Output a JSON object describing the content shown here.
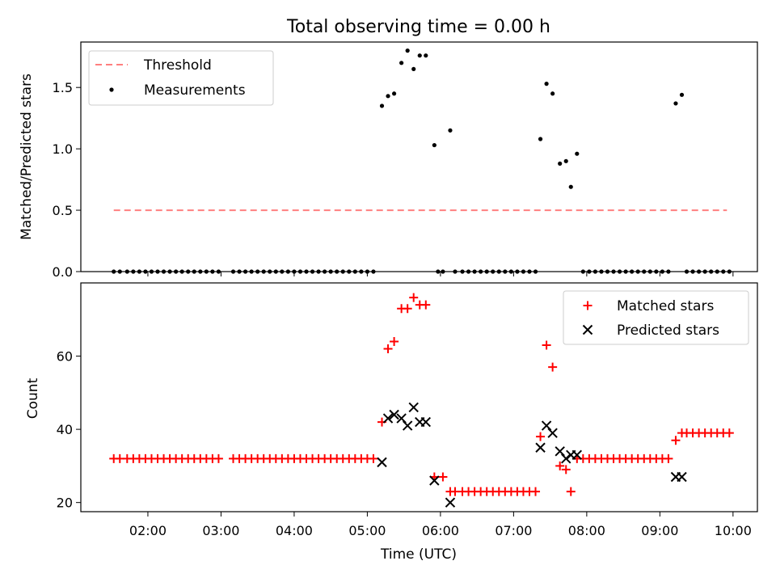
{
  "chart_data": [
    {
      "type": "line+scatter",
      "title": "Total observing time = 0.00 h",
      "xlabel": "",
      "ylabel": "Matched/Predicted stars",
      "ylim": [
        0,
        1.87
      ],
      "yticks": [
        "0.0",
        "0.5",
        "1.0",
        "1.5"
      ],
      "yticks_values": [
        0,
        0.5,
        1.0,
        1.5
      ],
      "legend": {
        "position": "upper-left",
        "entries": [
          "Threshold",
          "Measurements"
        ]
      },
      "threshold": {
        "name": "Threshold",
        "value": 0.5,
        "x_start": "01:32",
        "x_end": "09:55",
        "color": "#ff7f7f",
        "style": "dashed"
      },
      "series": [
        {
          "name": "Measurements",
          "color": "#000000",
          "points": [
            [
              "01:32",
              0
            ],
            [
              "01:37",
              0
            ],
            [
              "01:43",
              0
            ],
            [
              "01:48",
              0
            ],
            [
              "01:53",
              0
            ],
            [
              "01:58",
              0
            ],
            [
              "02:03",
              0
            ],
            [
              "02:08",
              0
            ],
            [
              "02:13",
              0
            ],
            [
              "02:18",
              0
            ],
            [
              "02:23",
              0
            ],
            [
              "02:28",
              0
            ],
            [
              "02:33",
              0
            ],
            [
              "02:38",
              0
            ],
            [
              "02:43",
              0
            ],
            [
              "02:48",
              0
            ],
            [
              "02:53",
              0
            ],
            [
              "02:58",
              0
            ],
            [
              "03:10",
              0
            ],
            [
              "03:15",
              0
            ],
            [
              "03:20",
              0
            ],
            [
              "03:25",
              0
            ],
            [
              "03:30",
              0
            ],
            [
              "03:35",
              0
            ],
            [
              "03:40",
              0
            ],
            [
              "03:45",
              0
            ],
            [
              "03:50",
              0
            ],
            [
              "03:55",
              0
            ],
            [
              "04:00",
              0
            ],
            [
              "04:05",
              0
            ],
            [
              "04:10",
              0
            ],
            [
              "04:15",
              0
            ],
            [
              "04:20",
              0
            ],
            [
              "04:25",
              0
            ],
            [
              "04:30",
              0
            ],
            [
              "04:35",
              0
            ],
            [
              "04:40",
              0
            ],
            [
              "04:45",
              0
            ],
            [
              "04:50",
              0
            ],
            [
              "04:55",
              0
            ],
            [
              "05:00",
              0
            ],
            [
              "05:05",
              0
            ],
            [
              "05:12",
              1.35
            ],
            [
              "05:17",
              1.43
            ],
            [
              "05:22",
              1.45
            ],
            [
              "05:28",
              1.7
            ],
            [
              "05:33",
              1.8
            ],
            [
              "05:38",
              1.65
            ],
            [
              "05:43",
              1.76
            ],
            [
              "05:48",
              1.76
            ],
            [
              "05:55",
              1.03
            ],
            [
              "06:08",
              1.15
            ],
            [
              "05:58",
              0
            ],
            [
              "06:02",
              0
            ],
            [
              "06:12",
              0
            ],
            [
              "06:18",
              0
            ],
            [
              "06:23",
              0
            ],
            [
              "06:28",
              0
            ],
            [
              "06:33",
              0
            ],
            [
              "06:38",
              0
            ],
            [
              "06:43",
              0
            ],
            [
              "06:48",
              0
            ],
            [
              "06:53",
              0
            ],
            [
              "06:58",
              0
            ],
            [
              "07:03",
              0
            ],
            [
              "07:08",
              0
            ],
            [
              "07:13",
              0
            ],
            [
              "07:18",
              0
            ],
            [
              "07:22",
              1.08
            ],
            [
              "07:27",
              1.53
            ],
            [
              "07:32",
              1.45
            ],
            [
              "07:38",
              0.88
            ],
            [
              "07:43",
              0.9
            ],
            [
              "07:47",
              0.69
            ],
            [
              "07:52",
              0.96
            ],
            [
              "07:57",
              0
            ],
            [
              "08:02",
              0
            ],
            [
              "08:07",
              0
            ],
            [
              "08:12",
              0
            ],
            [
              "08:17",
              0
            ],
            [
              "08:22",
              0
            ],
            [
              "08:27",
              0
            ],
            [
              "08:32",
              0
            ],
            [
              "08:37",
              0
            ],
            [
              "08:42",
              0
            ],
            [
              "08:47",
              0
            ],
            [
              "08:52",
              0
            ],
            [
              "08:57",
              0
            ],
            [
              "09:02",
              0
            ],
            [
              "09:07",
              0
            ],
            [
              "09:13",
              1.37
            ],
            [
              "09:18",
              1.44
            ],
            [
              "09:22",
              0
            ],
            [
              "09:27",
              0
            ],
            [
              "09:32",
              0
            ],
            [
              "09:37",
              0
            ],
            [
              "09:42",
              0
            ],
            [
              "09:47",
              0
            ],
            [
              "09:52",
              0
            ],
            [
              "09:57",
              0
            ]
          ]
        }
      ]
    },
    {
      "type": "scatter",
      "title": "",
      "xlabel": "Time (UTC)",
      "ylabel": "Count",
      "ylim": [
        17.5,
        80
      ],
      "yticks": [
        "20",
        "40",
        "60"
      ],
      "yticks_values": [
        20,
        40,
        60
      ],
      "xlim": [
        "01:05",
        "10:20"
      ],
      "xticks": [
        "02:00",
        "03:00",
        "04:00",
        "05:00",
        "06:00",
        "07:00",
        "08:00",
        "09:00",
        "10:00"
      ],
      "legend": {
        "position": "upper-right",
        "entries": [
          "Matched stars",
          "Predicted stars"
        ]
      },
      "series": [
        {
          "name": "Matched stars",
          "marker": "plus",
          "color": "#ff0000",
          "points": [
            [
              "01:32",
              32
            ],
            [
              "01:37",
              32
            ],
            [
              "01:43",
              32
            ],
            [
              "01:48",
              32
            ],
            [
              "01:53",
              32
            ],
            [
              "01:58",
              32
            ],
            [
              "02:03",
              32
            ],
            [
              "02:08",
              32
            ],
            [
              "02:13",
              32
            ],
            [
              "02:18",
              32
            ],
            [
              "02:23",
              32
            ],
            [
              "02:28",
              32
            ],
            [
              "02:33",
              32
            ],
            [
              "02:38",
              32
            ],
            [
              "02:43",
              32
            ],
            [
              "02:48",
              32
            ],
            [
              "02:53",
              32
            ],
            [
              "02:58",
              32
            ],
            [
              "03:10",
              32
            ],
            [
              "03:15",
              32
            ],
            [
              "03:20",
              32
            ],
            [
              "03:25",
              32
            ],
            [
              "03:30",
              32
            ],
            [
              "03:35",
              32
            ],
            [
              "03:40",
              32
            ],
            [
              "03:45",
              32
            ],
            [
              "03:50",
              32
            ],
            [
              "03:55",
              32
            ],
            [
              "04:00",
              32
            ],
            [
              "04:05",
              32
            ],
            [
              "04:10",
              32
            ],
            [
              "04:15",
              32
            ],
            [
              "04:20",
              32
            ],
            [
              "04:25",
              32
            ],
            [
              "04:30",
              32
            ],
            [
              "04:35",
              32
            ],
            [
              "04:40",
              32
            ],
            [
              "04:45",
              32
            ],
            [
              "04:50",
              32
            ],
            [
              "04:55",
              32
            ],
            [
              "05:00",
              32
            ],
            [
              "05:05",
              32
            ],
            [
              "05:12",
              42
            ],
            [
              "05:17",
              62
            ],
            [
              "05:22",
              64
            ],
            [
              "05:28",
              73
            ],
            [
              "05:33",
              73
            ],
            [
              "05:38",
              76
            ],
            [
              "05:43",
              74
            ],
            [
              "05:48",
              74
            ],
            [
              "05:55",
              27
            ],
            [
              "06:02",
              27
            ],
            [
              "06:08",
              23
            ],
            [
              "06:12",
              23
            ],
            [
              "06:18",
              23
            ],
            [
              "06:23",
              23
            ],
            [
              "06:28",
              23
            ],
            [
              "06:33",
              23
            ],
            [
              "06:38",
              23
            ],
            [
              "06:43",
              23
            ],
            [
              "06:48",
              23
            ],
            [
              "06:53",
              23
            ],
            [
              "06:58",
              23
            ],
            [
              "07:03",
              23
            ],
            [
              "07:08",
              23
            ],
            [
              "07:13",
              23
            ],
            [
              "07:18",
              23
            ],
            [
              "07:22",
              38
            ],
            [
              "07:27",
              63
            ],
            [
              "07:32",
              57
            ],
            [
              "07:38",
              30
            ],
            [
              "07:43",
              29
            ],
            [
              "07:47",
              23
            ],
            [
              "07:52",
              32
            ],
            [
              "07:57",
              32
            ],
            [
              "08:02",
              32
            ],
            [
              "08:07",
              32
            ],
            [
              "08:12",
              32
            ],
            [
              "08:17",
              32
            ],
            [
              "08:22",
              32
            ],
            [
              "08:27",
              32
            ],
            [
              "08:32",
              32
            ],
            [
              "08:37",
              32
            ],
            [
              "08:42",
              32
            ],
            [
              "08:47",
              32
            ],
            [
              "08:52",
              32
            ],
            [
              "08:57",
              32
            ],
            [
              "09:02",
              32
            ],
            [
              "09:07",
              32
            ],
            [
              "09:13",
              37
            ],
            [
              "09:18",
              39
            ],
            [
              "09:22",
              39
            ],
            [
              "09:27",
              39
            ],
            [
              "09:32",
              39
            ],
            [
              "09:37",
              39
            ],
            [
              "09:42",
              39
            ],
            [
              "09:47",
              39
            ],
            [
              "09:52",
              39
            ],
            [
              "09:57",
              39
            ]
          ]
        },
        {
          "name": "Predicted stars",
          "marker": "x",
          "color": "#000000",
          "points": [
            [
              "05:12",
              31
            ],
            [
              "05:17",
              43
            ],
            [
              "05:22",
              44
            ],
            [
              "05:28",
              43
            ],
            [
              "05:33",
              41
            ],
            [
              "05:38",
              46
            ],
            [
              "05:43",
              42
            ],
            [
              "05:48",
              42
            ],
            [
              "05:55",
              26
            ],
            [
              "06:08",
              20
            ],
            [
              "07:22",
              35
            ],
            [
              "07:27",
              41
            ],
            [
              "07:32",
              39
            ],
            [
              "07:38",
              34
            ],
            [
              "07:43",
              32
            ],
            [
              "07:47",
              33
            ],
            [
              "07:52",
              33
            ],
            [
              "09:13",
              27
            ],
            [
              "09:18",
              27
            ]
          ]
        }
      ]
    }
  ]
}
